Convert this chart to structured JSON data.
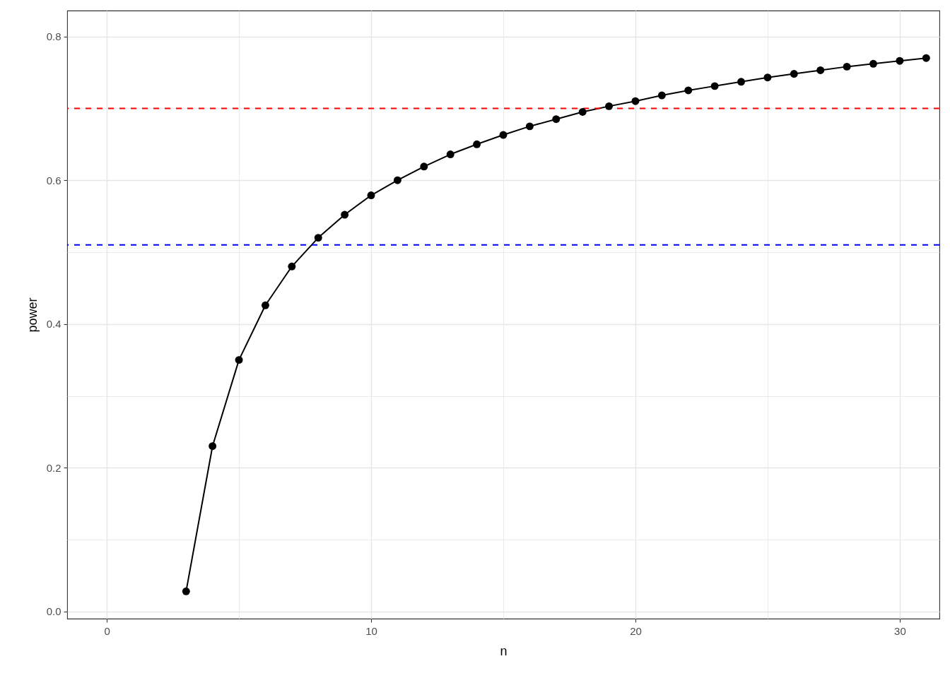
{
  "chart_data": {
    "type": "line",
    "xlabel": "n",
    "ylabel": "power",
    "x": [
      3,
      4,
      5,
      6,
      7,
      8,
      9,
      10,
      11,
      12,
      13,
      14,
      15,
      16,
      17,
      18,
      19,
      20,
      21,
      22,
      23,
      24,
      25,
      26,
      27,
      28,
      29,
      30,
      31
    ],
    "series": [
      {
        "color": "#000000",
        "values": [
          0.028,
          0.23,
          0.35,
          0.426,
          0.48,
          0.52,
          0.552,
          0.579,
          0.6,
          0.619,
          0.636,
          0.65,
          0.663,
          0.675,
          0.685,
          0.695,
          0.703,
          0.71,
          0.718,
          0.725,
          0.731,
          0.737,
          0.743,
          0.748,
          0.753,
          0.758,
          0.762,
          0.766,
          0.77
        ]
      }
    ],
    "xlim": [
      -1.5,
      31.5
    ],
    "ylim": [
      -0.01,
      0.836
    ],
    "xticks": [
      0,
      {
        "value": 5,
        "label": null
      },
      10,
      {
        "value": 15,
        "label": null
      },
      20,
      {
        "value": 25,
        "label": null
      },
      30
    ],
    "yticks": [
      {
        "value": 0,
        "label": "0.0"
      },
      {
        "value": 0.1,
        "label": null
      },
      0.2,
      {
        "value": 0.3,
        "label": null
      },
      0.4,
      {
        "value": 0.5,
        "label": null
      },
      0.6,
      {
        "value": 0.7,
        "label": null
      },
      0.8
    ],
    "grid": true,
    "marker": "circle",
    "line_style": "solid",
    "ref_lines": [
      {
        "axis": "y",
        "value": 0.7,
        "color": "#ff0000",
        "line_style": "dashed"
      },
      {
        "axis": "y",
        "value": 0.51,
        "color": "#0000ff",
        "line_style": "dashed"
      }
    ]
  }
}
